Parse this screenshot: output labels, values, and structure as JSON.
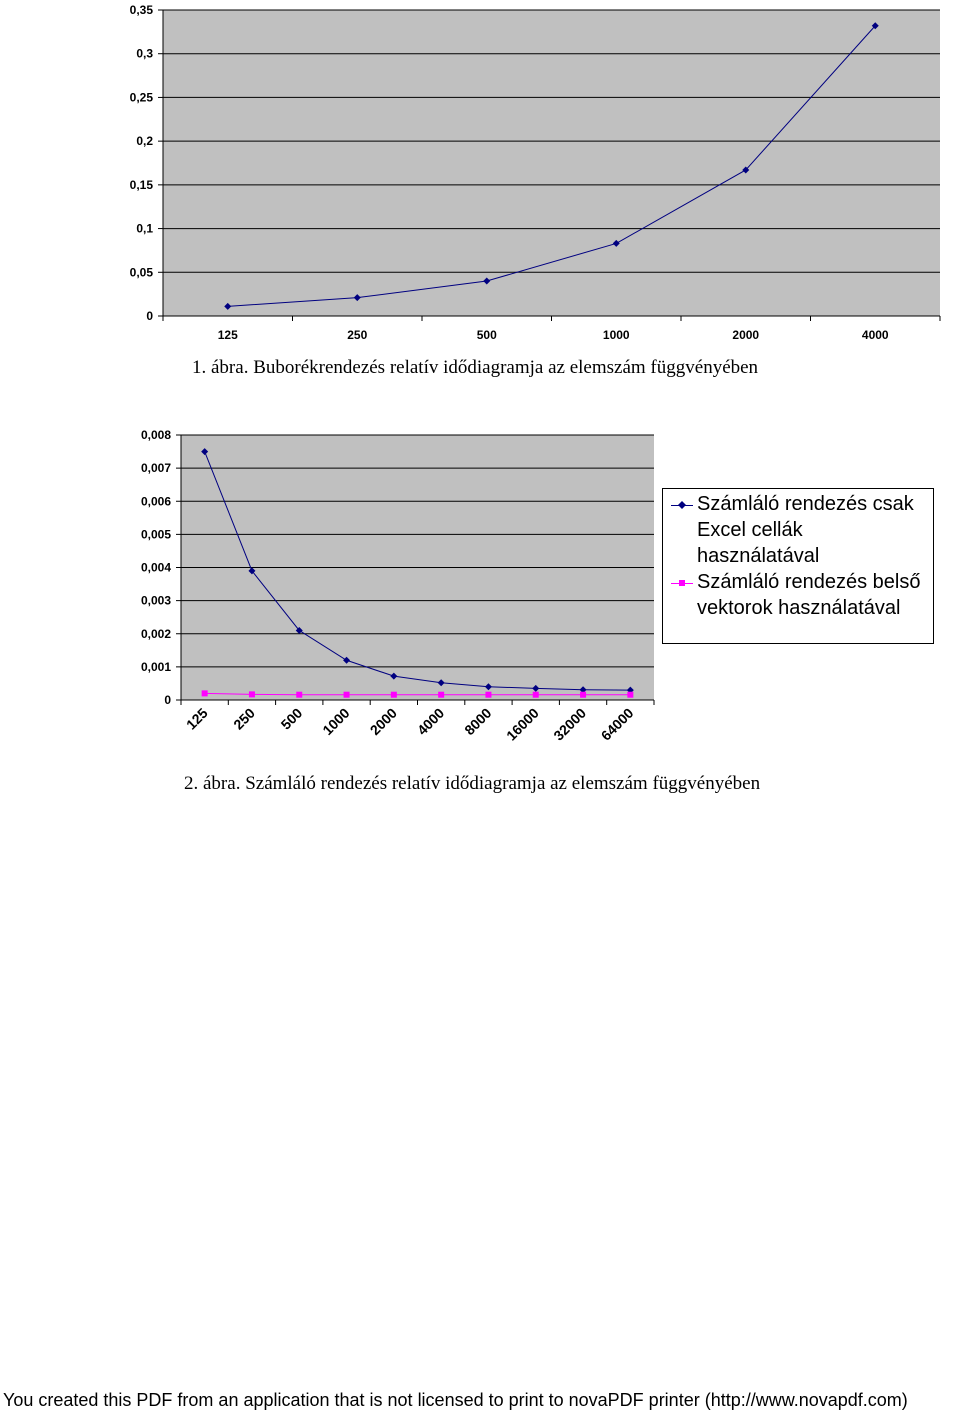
{
  "chart_data": [
    {
      "type": "line",
      "title": "",
      "xlabel": "",
      "ylabel": "",
      "categories": [
        "125",
        "250",
        "500",
        "1000",
        "2000",
        "4000"
      ],
      "y_tick_labels": [
        "0",
        "0,05",
        "0,1",
        "0,15",
        "0,2",
        "0,25",
        "0,3",
        "0,35"
      ],
      "ylim": [
        0,
        0.35
      ],
      "grid": true,
      "legend": null,
      "series": [
        {
          "values": [
            0.011,
            0.021,
            0.04,
            0.083,
            0.167,
            0.332
          ],
          "color": "#000080"
        }
      ],
      "plot_background": "#c0c0c0"
    },
    {
      "type": "line",
      "title": "",
      "xlabel": "",
      "ylabel": "",
      "categories": [
        "125",
        "250",
        "500",
        "1000",
        "2000",
        "4000",
        "8000",
        "16000",
        "32000",
        "64000"
      ],
      "y_tick_labels": [
        "0",
        "0,001",
        "0,002",
        "0,003",
        "0,004",
        "0,005",
        "0,006",
        "0,007",
        "0,008"
      ],
      "ylim": [
        0,
        0.008
      ],
      "grid": true,
      "legend": "right",
      "series": [
        {
          "name": "Számláló rendezés csak\nExcel cellák\nhasználatával",
          "values": [
            0.0075,
            0.0039,
            0.0021,
            0.0012,
            0.00072,
            0.00052,
            0.0004,
            0.00035,
            0.00031,
            0.0003
          ],
          "color": "#000080"
        },
        {
          "name": "Számláló rendezés belső\nvektorok használatával",
          "values": [
            0.0002,
            0.00017,
            0.00016,
            0.00016,
            0.00016,
            0.00016,
            0.00016,
            0.00016,
            0.00016,
            0.00016
          ],
          "color": "#ff00ff"
        }
      ],
      "plot_background": "#c0c0c0"
    }
  ],
  "captions": {
    "figure1": "1. ábra. Buborékrendezés relatív idődiagramja az elemszám függvényében",
    "figure2": "2. ábra. Számláló rendezés relatív idődiagramja az elemszám függvényében"
  },
  "footer": "You created this PDF from an application that is not licensed to print to novaPDF printer (http://www.novapdf.com)"
}
